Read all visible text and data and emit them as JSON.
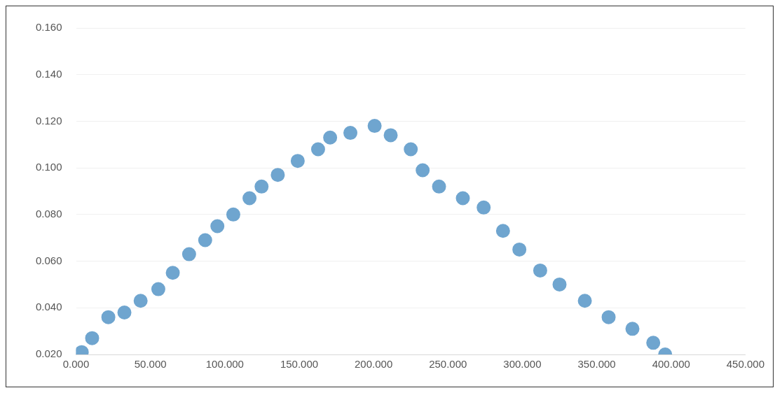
{
  "chart_data": {
    "type": "scatter",
    "x": [
      3.8,
      10.8,
      21.7,
      32.5,
      43.4,
      55.3,
      65,
      76,
      86.8,
      95,
      105.7,
      116.6,
      124.7,
      135.6,
      149,
      162.7,
      170.8,
      184.4,
      200.7,
      211.5,
      225,
      233,
      244,
      260,
      274,
      287,
      298,
      312,
      325,
      342,
      358,
      374,
      388,
      396
    ],
    "series": [
      {
        "color": "#6fa5cf",
        "values": [
          0.021,
          0.027,
          0.036,
          0.038,
          0.043,
          0.048,
          0.055,
          0.063,
          0.069,
          0.075,
          0.08,
          0.087,
          0.092,
          0.097,
          0.103,
          0.108,
          0.113,
          0.115,
          0.118,
          0.114,
          0.108,
          0.099,
          0.092,
          0.087,
          0.083,
          0.073,
          0.065,
          0.056,
          0.05,
          0.043,
          0.036,
          0.031,
          0.025,
          0.02
        ]
      }
    ],
    "xlim": [
      0,
      450
    ],
    "xticks": [
      {
        "value": 0,
        "label": "0.000"
      },
      {
        "value": 50,
        "label": "50.000"
      },
      {
        "value": 100,
        "label": "100.000"
      },
      {
        "value": 150,
        "label": "150.000"
      },
      {
        "value": 200,
        "label": "200.000"
      },
      {
        "value": 250,
        "label": "250.000"
      },
      {
        "value": 300,
        "label": "300.000"
      },
      {
        "value": 350,
        "label": "350.000"
      },
      {
        "value": 400,
        "label": "400.000"
      },
      {
        "value": 450,
        "label": "450.000"
      }
    ],
    "ylim": [
      0.02,
      0.16
    ],
    "yticks": [
      {
        "value": 0.02,
        "label": "0.020"
      },
      {
        "value": 0.04,
        "label": "0.040"
      },
      {
        "value": 0.06,
        "label": "0.060"
      },
      {
        "value": 0.08,
        "label": "0.080"
      },
      {
        "value": 0.1,
        "label": "0.100"
      },
      {
        "value": 0.12,
        "label": "0.120"
      },
      {
        "value": 0.14,
        "label": "0.140"
      },
      {
        "value": 0.16,
        "label": "0.160"
      }
    ],
    "grid": "y",
    "legend": false,
    "marker": "circle"
  }
}
